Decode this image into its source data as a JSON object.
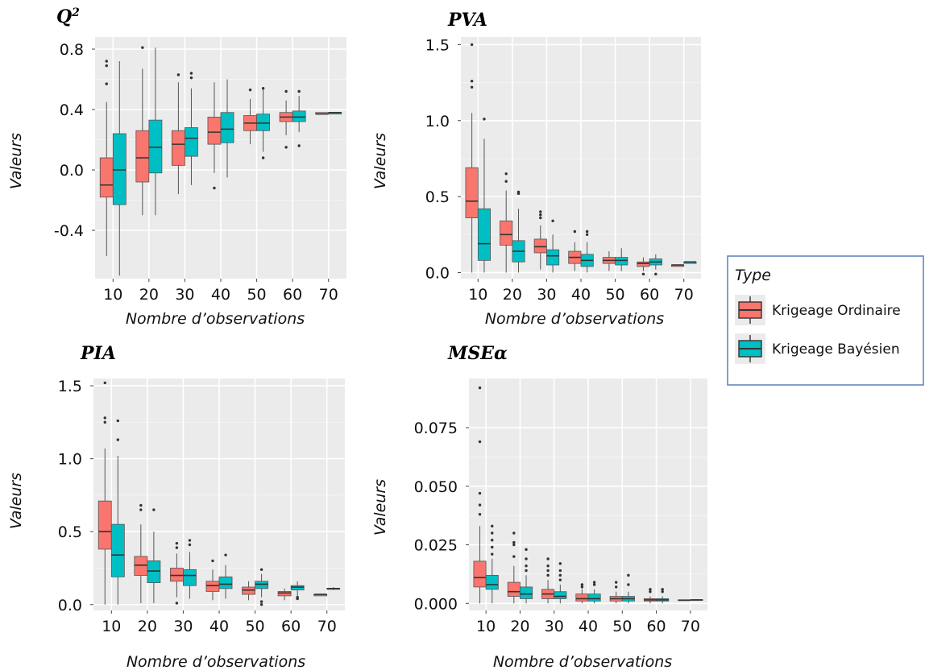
{
  "legend": {
    "title": "Type",
    "entries": [
      {
        "label": "Krigeage Ordinaire",
        "color": "#F8766D"
      },
      {
        "label": "Krigeage Bayésien",
        "color": "#00BFC4"
      }
    ]
  },
  "chart_data": [
    {
      "type": "boxplot",
      "title": "Q",
      "title_superscript": "2",
      "xlabel": "Nombre d’observations",
      "ylabel": "Valeurs",
      "categories": [
        "10",
        "20",
        "30",
        "40",
        "50",
        "60",
        "70"
      ],
      "ylim": [
        -0.72,
        0.88
      ],
      "yticks": [
        -0.4,
        0.0,
        0.4,
        0.8
      ],
      "ytick_labels": [
        "-0.4",
        "0.0",
        "0.4",
        "0.8"
      ],
      "series": [
        {
          "name": "Krigeage Ordinaire",
          "color": "#F8766D",
          "boxes": [
            {
              "min": -0.57,
              "q1": -0.18,
              "median": -0.1,
              "q3": 0.08,
              "max": 0.45,
              "outliers": [
                0.57,
                0.69,
                0.72
              ]
            },
            {
              "min": -0.3,
              "q1": -0.08,
              "median": 0.08,
              "q3": 0.26,
              "max": 0.67,
              "outliers": [
                0.81
              ]
            },
            {
              "min": -0.16,
              "q1": 0.03,
              "median": 0.17,
              "q3": 0.26,
              "max": 0.58,
              "outliers": [
                0.63
              ]
            },
            {
              "min": -0.02,
              "q1": 0.17,
              "median": 0.25,
              "q3": 0.35,
              "max": 0.58,
              "outliers": [
                -0.12
              ]
            },
            {
              "min": 0.17,
              "q1": 0.26,
              "median": 0.31,
              "q3": 0.36,
              "max": 0.47,
              "outliers": [
                0.53
              ]
            },
            {
              "min": 0.23,
              "q1": 0.32,
              "median": 0.35,
              "q3": 0.38,
              "max": 0.46,
              "outliers": [
                0.15,
                0.52
              ]
            },
            {
              "min": 0.37,
              "q1": 0.37,
              "median": 0.37,
              "q3": 0.38,
              "max": 0.38,
              "outliers": []
            }
          ]
        },
        {
          "name": "Krigeage Bayésien",
          "color": "#00BFC4",
          "boxes": [
            {
              "min": -0.7,
              "q1": -0.23,
              "median": 0.0,
              "q3": 0.24,
              "max": 0.72,
              "outliers": []
            },
            {
              "min": -0.3,
              "q1": -0.02,
              "median": 0.15,
              "q3": 0.33,
              "max": 0.81,
              "outliers": []
            },
            {
              "min": -0.1,
              "q1": 0.09,
              "median": 0.21,
              "q3": 0.28,
              "max": 0.54,
              "outliers": [
                0.61,
                0.64
              ]
            },
            {
              "min": -0.05,
              "q1": 0.18,
              "median": 0.27,
              "q3": 0.38,
              "max": 0.6,
              "outliers": []
            },
            {
              "min": 0.12,
              "q1": 0.26,
              "median": 0.31,
              "q3": 0.37,
              "max": 0.53,
              "outliers": [
                0.08,
                0.54
              ]
            },
            {
              "min": 0.25,
              "q1": 0.32,
              "median": 0.35,
              "q3": 0.39,
              "max": 0.49,
              "outliers": [
                0.16,
                0.52
              ]
            },
            {
              "min": 0.37,
              "q1": 0.37,
              "median": 0.38,
              "q3": 0.38,
              "max": 0.38,
              "outliers": []
            }
          ]
        }
      ]
    },
    {
      "type": "boxplot",
      "title": "PVA",
      "title_superscript": "",
      "xlabel": "Nombre d’observations",
      "ylabel": "Valeurs",
      "categories": [
        "10",
        "20",
        "30",
        "40",
        "50",
        "60",
        "70"
      ],
      "ylim": [
        -0.04,
        1.55
      ],
      "yticks": [
        0.0,
        0.5,
        1.0,
        1.5
      ],
      "ytick_labels": [
        "0.0",
        "0.5",
        "1.0",
        "1.5"
      ],
      "series": [
        {
          "name": "Krigeage Ordinaire",
          "color": "#F8766D",
          "boxes": [
            {
              "min": 0.0,
              "q1": 0.36,
              "median": 0.47,
              "q3": 0.69,
              "max": 1.05,
              "outliers": [
                1.22,
                1.26,
                1.5
              ]
            },
            {
              "min": 0.0,
              "q1": 0.18,
              "median": 0.25,
              "q3": 0.34,
              "max": 0.54,
              "outliers": [
                0.6,
                0.65
              ]
            },
            {
              "min": 0.02,
              "q1": 0.13,
              "median": 0.17,
              "q3": 0.22,
              "max": 0.31,
              "outliers": [
                0.36,
                0.38,
                0.4
              ]
            },
            {
              "min": 0.01,
              "q1": 0.06,
              "median": 0.1,
              "q3": 0.14,
              "max": 0.2,
              "outliers": [
                0.27
              ]
            },
            {
              "min": 0.01,
              "q1": 0.06,
              "median": 0.08,
              "q3": 0.1,
              "max": 0.14,
              "outliers": []
            },
            {
              "min": 0.01,
              "q1": 0.04,
              "median": 0.06,
              "q3": 0.07,
              "max": 0.1,
              "outliers": [
                -0.01
              ]
            },
            {
              "min": 0.04,
              "q1": 0.04,
              "median": 0.05,
              "q3": 0.05,
              "max": 0.05,
              "outliers": []
            }
          ]
        },
        {
          "name": "Krigeage Bayésien",
          "color": "#00BFC4",
          "boxes": [
            {
              "min": 0.0,
              "q1": 0.08,
              "median": 0.19,
              "q3": 0.42,
              "max": 0.88,
              "outliers": [
                1.01
              ]
            },
            {
              "min": 0.0,
              "q1": 0.07,
              "median": 0.14,
              "q3": 0.21,
              "max": 0.42,
              "outliers": [
                0.52,
                0.53
              ]
            },
            {
              "min": 0.0,
              "q1": 0.05,
              "median": 0.11,
              "q3": 0.15,
              "max": 0.25,
              "outliers": [
                0.34
              ]
            },
            {
              "min": 0.0,
              "q1": 0.04,
              "median": 0.08,
              "q3": 0.12,
              "max": 0.2,
              "outliers": [
                0.25,
                0.27
              ]
            },
            {
              "min": 0.01,
              "q1": 0.05,
              "median": 0.08,
              "q3": 0.1,
              "max": 0.16,
              "outliers": []
            },
            {
              "min": 0.02,
              "q1": 0.05,
              "median": 0.07,
              "q3": 0.09,
              "max": 0.12,
              "outliers": [
                -0.01
              ]
            },
            {
              "min": 0.06,
              "q1": 0.06,
              "median": 0.07,
              "q3": 0.07,
              "max": 0.07,
              "outliers": []
            }
          ]
        }
      ]
    },
    {
      "type": "boxplot",
      "title": "PIA",
      "title_superscript": "",
      "xlabel": "Nombre d’observations",
      "ylabel": "Valeurs",
      "categories": [
        "10",
        "20",
        "30",
        "40",
        "50",
        "60",
        "70"
      ],
      "ylim": [
        -0.04,
        1.55
      ],
      "yticks": [
        0.0,
        0.5,
        1.0,
        1.5
      ],
      "ytick_labels": [
        "0.0",
        "0.5",
        "1.0",
        "1.5"
      ],
      "series": [
        {
          "name": "Krigeage Ordinaire",
          "color": "#F8766D",
          "boxes": [
            {
              "min": 0.0,
              "q1": 0.38,
              "median": 0.5,
              "q3": 0.71,
              "max": 1.07,
              "outliers": [
                1.25,
                1.28,
                1.52
              ]
            },
            {
              "min": 0.01,
              "q1": 0.2,
              "median": 0.27,
              "q3": 0.33,
              "max": 0.55,
              "outliers": [
                0.65,
                0.68
              ]
            },
            {
              "min": 0.05,
              "q1": 0.16,
              "median": 0.2,
              "q3": 0.25,
              "max": 0.35,
              "outliers": [
                0.01,
                0.39,
                0.42
              ]
            },
            {
              "min": 0.03,
              "q1": 0.09,
              "median": 0.13,
              "q3": 0.16,
              "max": 0.24,
              "outliers": [
                0.3
              ]
            },
            {
              "min": 0.03,
              "q1": 0.07,
              "median": 0.1,
              "q3": 0.12,
              "max": 0.16,
              "outliers": []
            },
            {
              "min": 0.03,
              "q1": 0.06,
              "median": 0.08,
              "q3": 0.09,
              "max": 0.11,
              "outliers": []
            },
            {
              "min": 0.06,
              "q1": 0.06,
              "median": 0.07,
              "q3": 0.07,
              "max": 0.07,
              "outliers": []
            }
          ]
        },
        {
          "name": "Krigeage Bayésien",
          "color": "#00BFC4",
          "boxes": [
            {
              "min": 0.0,
              "q1": 0.19,
              "median": 0.34,
              "q3": 0.55,
              "max": 1.02,
              "outliers": [
                1.13,
                1.26
              ]
            },
            {
              "min": 0.01,
              "q1": 0.15,
              "median": 0.23,
              "q3": 0.3,
              "max": 0.5,
              "outliers": [
                0.65
              ]
            },
            {
              "min": 0.04,
              "q1": 0.13,
              "median": 0.2,
              "q3": 0.24,
              "max": 0.36,
              "outliers": [
                0.41,
                0.44
              ]
            },
            {
              "min": 0.04,
              "q1": 0.11,
              "median": 0.14,
              "q3": 0.19,
              "max": 0.27,
              "outliers": [
                0.34
              ]
            },
            {
              "min": 0.05,
              "q1": 0.11,
              "median": 0.14,
              "q3": 0.16,
              "max": 0.21,
              "outliers": [
                0.0,
                0.02,
                0.24
              ]
            },
            {
              "min": 0.06,
              "q1": 0.1,
              "median": 0.12,
              "q3": 0.13,
              "max": 0.16,
              "outliers": [
                0.04,
                0.05
              ]
            },
            {
              "min": 0.1,
              "q1": 0.11,
              "median": 0.11,
              "q3": 0.11,
              "max": 0.12,
              "outliers": []
            }
          ]
        }
      ]
    },
    {
      "type": "boxplot",
      "title": "MSEα",
      "title_superscript": "",
      "xlabel": "Nombre d’observations",
      "ylabel": "Valeurs",
      "categories": [
        "10",
        "20",
        "30",
        "40",
        "50",
        "60",
        "70"
      ],
      "ylim": [
        -0.003,
        0.096
      ],
      "yticks": [
        0.0,
        0.025,
        0.05,
        0.075
      ],
      "ytick_labels": [
        "0.000",
        "0.025",
        "0.050",
        "0.075"
      ],
      "series": [
        {
          "name": "Krigeage Ordinaire",
          "color": "#F8766D",
          "boxes": [
            {
              "min": 0.0,
              "q1": 0.007,
              "median": 0.011,
              "q3": 0.018,
              "max": 0.033,
              "outliers": [
                0.038,
                0.042,
                0.047,
                0.069,
                0.092
              ]
            },
            {
              "min": 0.0,
              "q1": 0.003,
              "median": 0.005,
              "q3": 0.009,
              "max": 0.016,
              "outliers": [
                0.02,
                0.025,
                0.026,
                0.03
              ]
            },
            {
              "min": 0.0,
              "q1": 0.002,
              "median": 0.004,
              "q3": 0.006,
              "max": 0.01,
              "outliers": [
                0.012,
                0.014,
                0.016,
                0.019
              ]
            },
            {
              "min": 0.0,
              "q1": 0.001,
              "median": 0.002,
              "q3": 0.004,
              "max": 0.006,
              "outliers": [
                0.007,
                0.008
              ]
            },
            {
              "min": 0.0,
              "q1": 0.001,
              "median": 0.002,
              "q3": 0.003,
              "max": 0.005,
              "outliers": [
                0.007,
                0.009
              ]
            },
            {
              "min": 0.0,
              "q1": 0.001,
              "median": 0.0015,
              "q3": 0.002,
              "max": 0.003,
              "outliers": [
                0.005,
                0.006
              ]
            },
            {
              "min": 0.0012,
              "q1": 0.0013,
              "median": 0.0014,
              "q3": 0.0015,
              "max": 0.0016,
              "outliers": []
            }
          ]
        },
        {
          "name": "Krigeage Bayésien",
          "color": "#00BFC4",
          "boxes": [
            {
              "min": 0.0,
              "q1": 0.006,
              "median": 0.008,
              "q3": 0.012,
              "max": 0.019,
              "outliers": [
                0.021,
                0.024,
                0.027,
                0.03,
                0.033
              ]
            },
            {
              "min": 0.0,
              "q1": 0.002,
              "median": 0.004,
              "q3": 0.007,
              "max": 0.012,
              "outliers": [
                0.014,
                0.016,
                0.019,
                0.023
              ]
            },
            {
              "min": 0.0,
              "q1": 0.002,
              "median": 0.003,
              "q3": 0.005,
              "max": 0.008,
              "outliers": [
                0.01,
                0.012,
                0.014,
                0.017
              ]
            },
            {
              "min": 0.0,
              "q1": 0.001,
              "median": 0.002,
              "q3": 0.004,
              "max": 0.006,
              "outliers": [
                0.008,
                0.009
              ]
            },
            {
              "min": 0.0,
              "q1": 0.001,
              "median": 0.002,
              "q3": 0.003,
              "max": 0.005,
              "outliers": [
                0.008,
                0.012
              ]
            },
            {
              "min": 0.0,
              "q1": 0.001,
              "median": 0.0015,
              "q3": 0.002,
              "max": 0.003,
              "outliers": [
                0.005,
                0.006
              ]
            },
            {
              "min": 0.0012,
              "q1": 0.0013,
              "median": 0.0015,
              "q3": 0.0016,
              "max": 0.0017,
              "outliers": []
            }
          ]
        }
      ]
    }
  ]
}
